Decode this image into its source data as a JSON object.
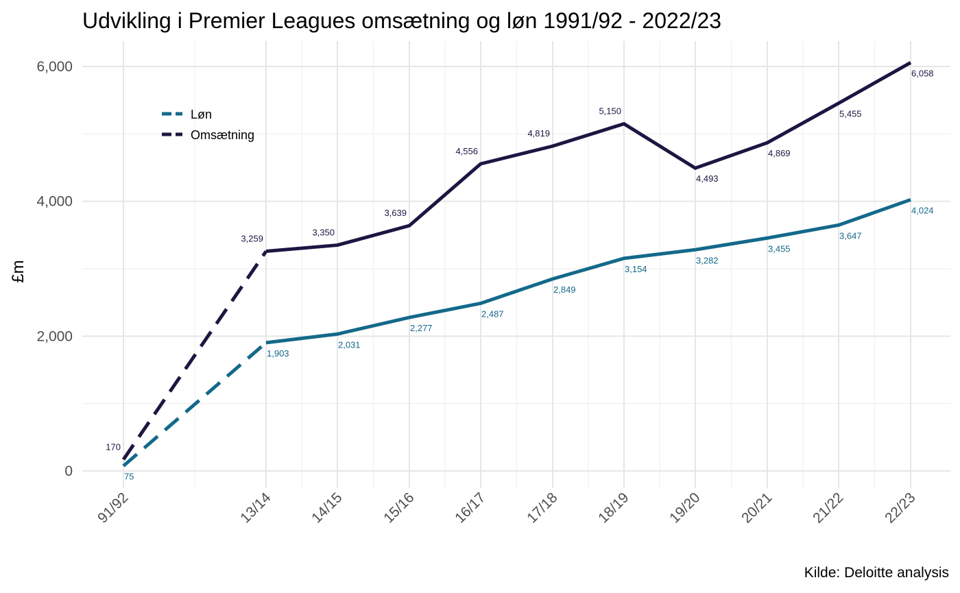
{
  "title": "Udvikling i Premier Leagues omsætning og løn 1991/92 - 2022/23",
  "caption": "Kilde: Deloitte analysis",
  "colors": {
    "lon": "#13698a",
    "omsaetning": "#1c1642"
  },
  "chart_data": {
    "type": "line",
    "title": "Udvikling i Premier Leagues omsætning og løn 1991/92 - 2022/23",
    "xlabel": "",
    "ylabel": "£m",
    "ylim": [
      0,
      6000
    ],
    "yticks": [
      "0",
      "2,000",
      "4,000",
      "6,000"
    ],
    "categories": [
      "91/92",
      "13/14",
      "14/15",
      "15/16",
      "16/17",
      "17/18",
      "18/19",
      "19/20",
      "20/21",
      "21/22",
      "22/23"
    ],
    "legend": {
      "position": "top-left"
    },
    "series": [
      {
        "name": "Løn",
        "values": [
          75,
          1903,
          2031,
          2277,
          2487,
          2849,
          3154,
          3282,
          3455,
          3647,
          4024
        ],
        "labels": [
          "75",
          "1,903",
          "2,031",
          "2,277",
          "2,487",
          "2,849",
          "3,154",
          "3,282",
          "3,455",
          "3,647",
          "4,024"
        ]
      },
      {
        "name": "Omsætning",
        "values": [
          170,
          3259,
          3350,
          3639,
          4556,
          4819,
          5150,
          4493,
          4869,
          5455,
          6058
        ],
        "labels": [
          "170",
          "3,259",
          "3,350",
          "3,639",
          "4,556",
          "4,819",
          "5,150",
          "4,493",
          "4,869",
          "5,455",
          "6,058"
        ]
      }
    ],
    "line_style": "dashed from 91/92 to 13/14, solid thereafter",
    "grid": true
  }
}
